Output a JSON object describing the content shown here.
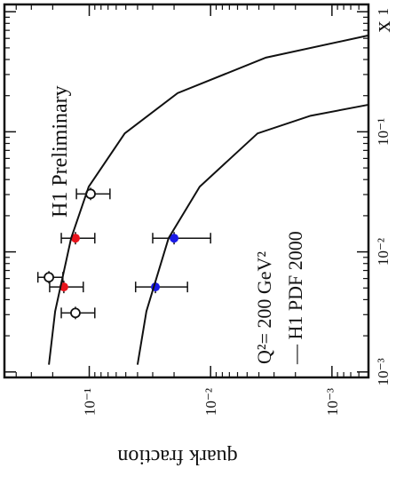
{
  "chart_data": {
    "type": "scatter",
    "x_label": "x",
    "y_label": "quark fraction",
    "log_x": true,
    "log_y": true,
    "xlim": [
      0.0009,
      1.15
    ],
    "ylim": [
      0.0005,
      0.5
    ],
    "xticks": [
      {
        "value": 0.001,
        "label": "10⁻³"
      },
      {
        "value": 0.01,
        "label": "10⁻²"
      },
      {
        "value": 0.1,
        "label": "10⁻¹"
      },
      1
    ],
    "yticks": [
      {
        "value": 0.001,
        "label": "10⁻³"
      },
      {
        "value": 0.01,
        "label": "10⁻²"
      },
      {
        "value": 0.1,
        "label": "10⁻¹"
      }
    ],
    "annotations": [
      "H1 Preliminary",
      "Q²= 200 GeV²",
      "— H1 PDF 2000"
    ],
    "series": [
      {
        "color": "#e8141c",
        "marker": "filled",
        "x": [
          0.013,
          0.0051
        ],
        "values": [
          0.13,
          0.162
        ],
        "yerr": [
          0.04,
          0.05
        ]
      },
      {
        "color": "#1a1ae6",
        "marker": "filled",
        "x": [
          0.013,
          0.0051
        ],
        "values": [
          0.02,
          0.0285
        ],
        "yerr": [
          0.01,
          0.013
        ]
      },
      {
        "color": "#111111",
        "marker": "open",
        "x": [
          0.0304,
          0.00614,
          0.0031
        ],
        "values": [
          0.0975,
          0.215,
          0.13
        ],
        "yerr": [
          0.03,
          0.05,
          0.04
        ]
      },
      {
        "color": "#111111",
        "marker": "line",
        "x": [
          0.00115,
          0.0032,
          0.013,
          0.0349,
          0.097,
          0.21,
          0.415,
          0.635
        ],
        "values": [
          0.215,
          0.191,
          0.141,
          0.101,
          0.051,
          0.0187,
          0.0035,
          0.0005
        ]
      },
      {
        "color": "#111111",
        "marker": "line",
        "x": [
          0.00115,
          0.0032,
          0.013,
          0.0349,
          0.097,
          0.136,
          0.168
        ],
        "values": [
          0.04,
          0.0338,
          0.0222,
          0.0123,
          0.0041,
          0.0015,
          0.0005
        ]
      }
    ]
  }
}
